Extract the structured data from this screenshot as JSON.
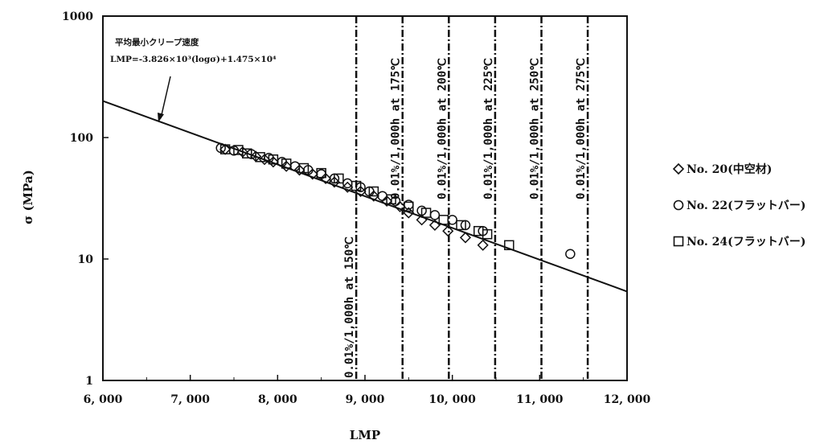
{
  "chart_data": {
    "type": "scatter",
    "title": "",
    "xlabel": "LMP",
    "ylabel": "σ (MPa)",
    "xlim": [
      6000,
      12000
    ],
    "ylim": [
      1,
      1000
    ],
    "y_scale": "log",
    "x_ticks": [
      6000,
      7000,
      8000,
      9000,
      10000,
      11000,
      12000
    ],
    "x_tick_labels": [
      "6, 000",
      "7, 000",
      "8, 000",
      "9, 000",
      "10, 000",
      "11, 000",
      "12, 000"
    ],
    "y_ticks": [
      1,
      10,
      100,
      1000
    ],
    "y_tick_labels": [
      "1",
      "10",
      "100",
      "1000"
    ],
    "grid": false,
    "legend_position": "right",
    "fit_line": {
      "annotation_title": "平均最小クリープ速度",
      "annotation_formula": "LMP=-3.826×10³(logσ)+1.475×10⁴",
      "points": [
        [
          6000,
          200
        ],
        [
          12000,
          5.4
        ]
      ]
    },
    "reference_lines": [
      {
        "x": 8900,
        "label": "0.01%/1,000h at 150℃"
      },
      {
        "x": 9430,
        "label": "0.01%/1,000h at 175℃"
      },
      {
        "x": 9960,
        "label": "0.01%/1,000h at 200℃"
      },
      {
        "x": 10490,
        "label": "0.01%/1,000h at 225℃"
      },
      {
        "x": 11020,
        "label": "0.01%/1,000h at 250℃"
      },
      {
        "x": 11550,
        "label": "0.01%/1,000h at 275℃"
      }
    ],
    "series": [
      {
        "name": "No. 20(中空材)",
        "marker": "diamond",
        "points": [
          [
            7400,
            80
          ],
          [
            7600,
            76
          ],
          [
            7750,
            70
          ],
          [
            7850,
            66
          ],
          [
            7950,
            63
          ],
          [
            8100,
            58
          ],
          [
            8250,
            54
          ],
          [
            8400,
            50
          ],
          [
            8550,
            46
          ],
          [
            8650,
            43
          ],
          [
            8800,
            39
          ],
          [
            8950,
            36
          ],
          [
            9100,
            33
          ],
          [
            9250,
            30
          ],
          [
            9400,
            27
          ],
          [
            9500,
            24
          ],
          [
            9650,
            21
          ],
          [
            9800,
            19
          ],
          [
            9950,
            17
          ],
          [
            10150,
            15
          ],
          [
            10350,
            13
          ]
        ]
      },
      {
        "name": "No. 22(フラットバー)",
        "marker": "circle",
        "points": [
          [
            7350,
            82
          ],
          [
            7500,
            78
          ],
          [
            7700,
            73
          ],
          [
            7900,
            68
          ],
          [
            8050,
            63
          ],
          [
            8200,
            58
          ],
          [
            8350,
            54
          ],
          [
            8500,
            50
          ],
          [
            8650,
            46
          ],
          [
            8800,
            42
          ],
          [
            8950,
            39
          ],
          [
            9050,
            36
          ],
          [
            9200,
            33
          ],
          [
            9350,
            30
          ],
          [
            9500,
            28
          ],
          [
            9650,
            25
          ],
          [
            9800,
            23
          ],
          [
            10000,
            21
          ],
          [
            10150,
            19
          ],
          [
            10350,
            17
          ],
          [
            11350,
            11
          ]
        ]
      },
      {
        "name": "No. 24(フラットバー)",
        "marker": "square",
        "points": [
          [
            7400,
            80
          ],
          [
            7550,
            79
          ],
          [
            7650,
            74
          ],
          [
            7800,
            69
          ],
          [
            7950,
            66
          ],
          [
            8100,
            61
          ],
          [
            8300,
            56
          ],
          [
            8500,
            51
          ],
          [
            8700,
            46
          ],
          [
            8900,
            40
          ],
          [
            9100,
            36
          ],
          [
            9300,
            31
          ],
          [
            9500,
            27
          ],
          [
            9700,
            24
          ],
          [
            9900,
            21
          ],
          [
            10100,
            19
          ],
          [
            10300,
            17
          ],
          [
            10400,
            16
          ],
          [
            10650,
            13
          ]
        ]
      }
    ]
  },
  "colors": {
    "ink": "#111111",
    "background": "#ffffff"
  }
}
